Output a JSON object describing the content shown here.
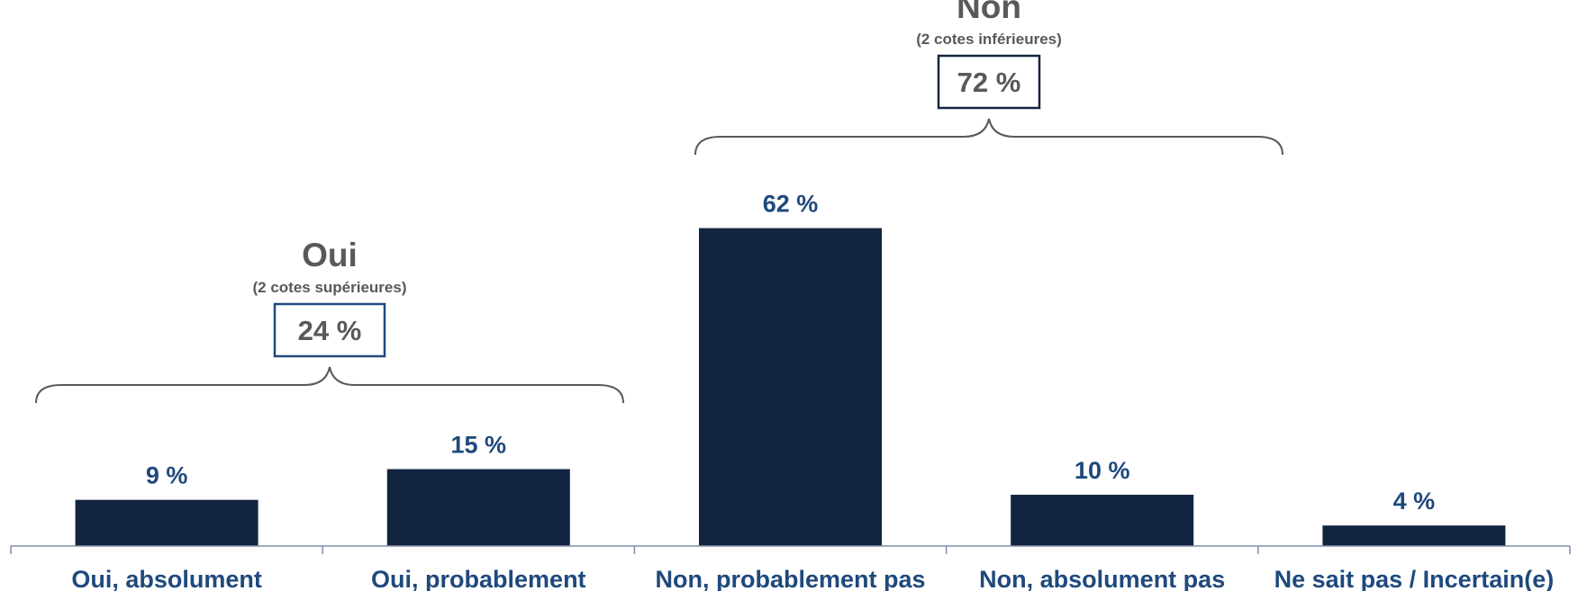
{
  "chart_data": {
    "type": "bar",
    "categories": [
      "Oui, absolument",
      "Oui, probablement",
      "Non, probablement pas",
      "Non, absolument pas",
      "Ne sait pas / Incertain(e)"
    ],
    "values": [
      9,
      15,
      62,
      10,
      4
    ],
    "value_labels": [
      "9 %",
      "15 %",
      "62 %",
      "10 %",
      "4 %"
    ],
    "ylim": [
      0,
      70
    ],
    "grid": false,
    "bar_color": "#12243f",
    "label_color": "#1f497d",
    "groups": [
      {
        "title": "Oui",
        "subtitle": "(2 cotes supérieures)",
        "total_label": "24 %",
        "total": 24,
        "box_color": "#1f497d",
        "categories": [
          0,
          1
        ]
      },
      {
        "title": "Non",
        "subtitle": "(2 cotes inférieures)",
        "total_label": "72 %",
        "total": 72,
        "box_color": "#12243f",
        "categories": [
          2,
          3
        ]
      }
    ]
  }
}
